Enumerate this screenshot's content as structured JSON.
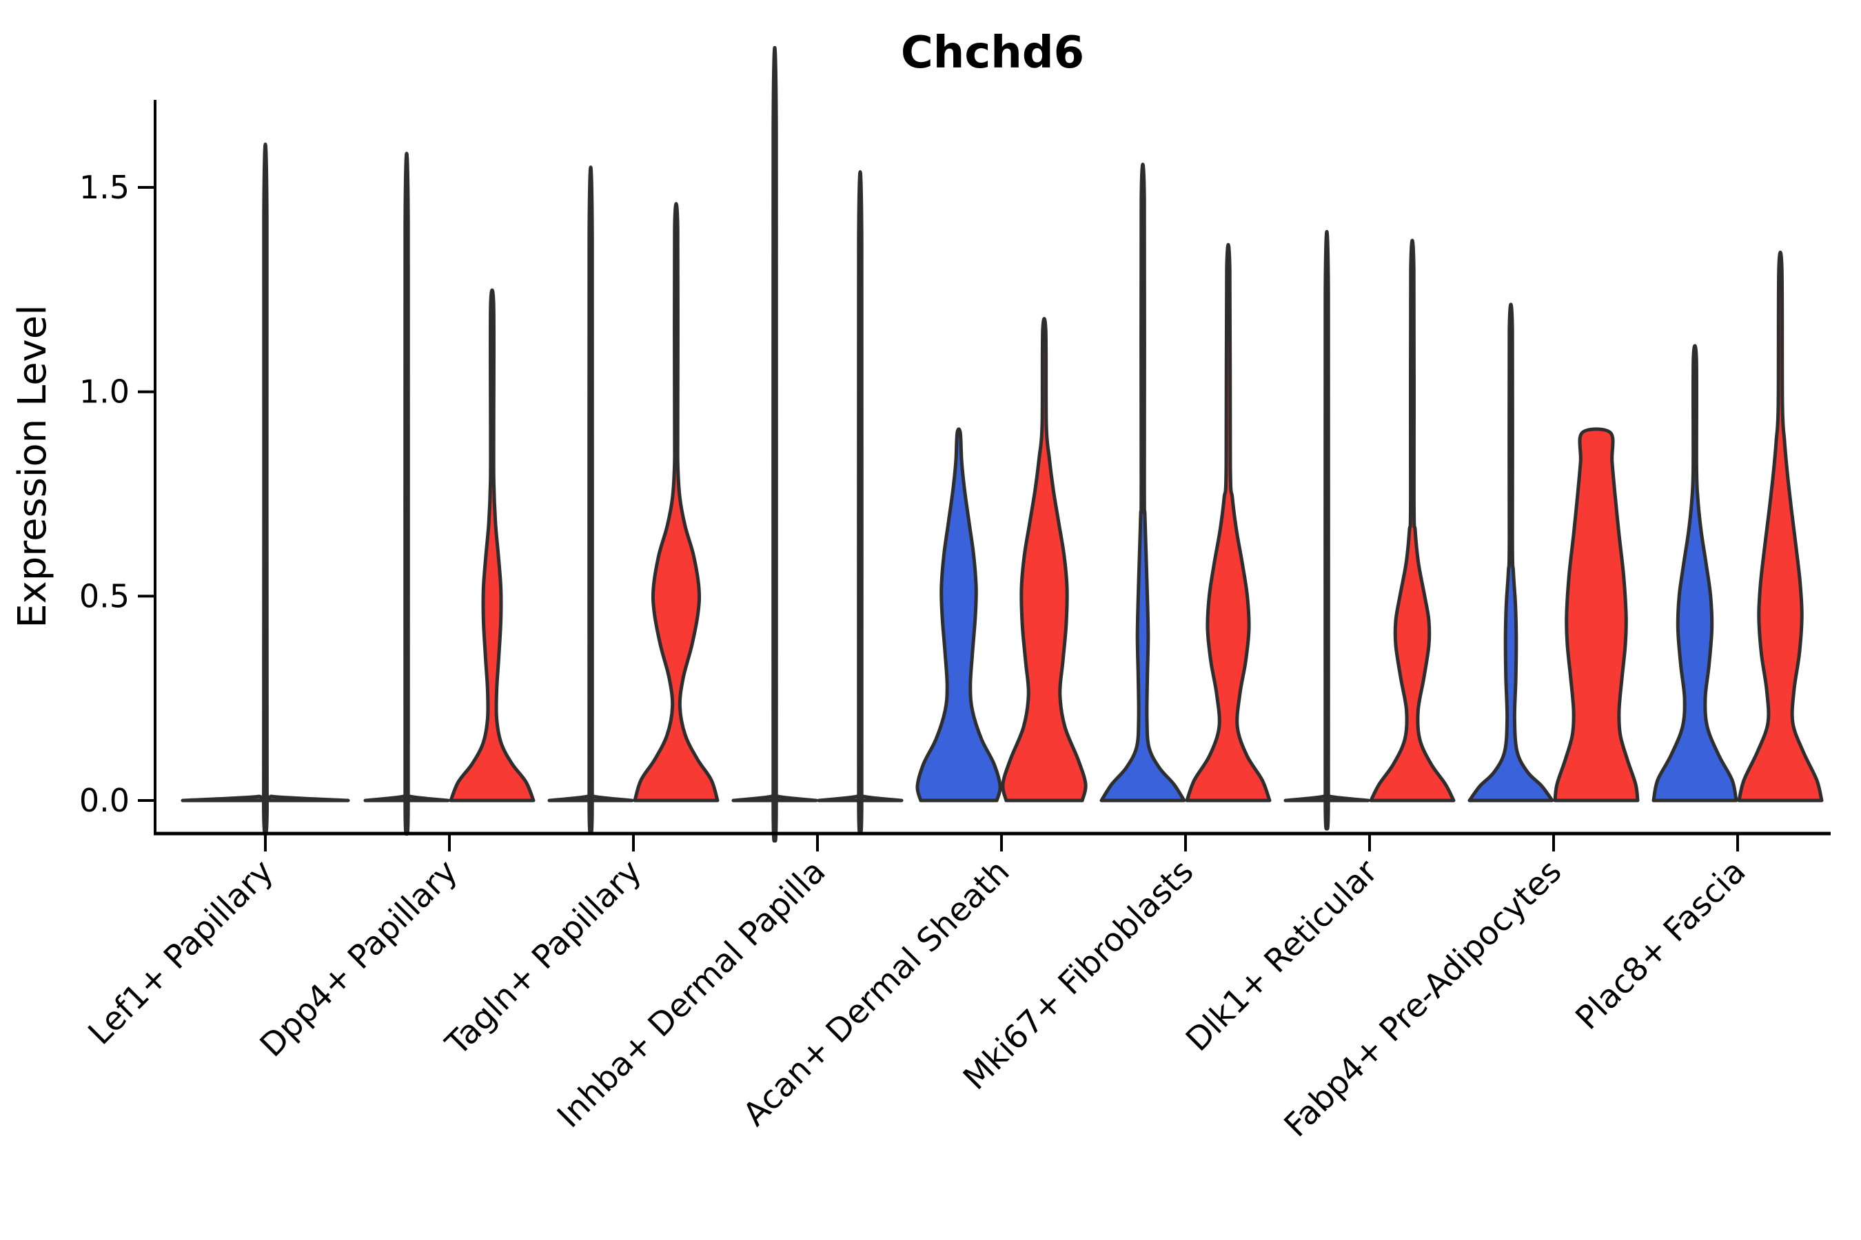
{
  "title": "Chchd6",
  "ylabel": "Expression Level",
  "colors": {
    "blue": "#3a63db",
    "red": "#f83a35",
    "outline": "#2e2e2e",
    "axis": "#000000"
  },
  "chart_data": {
    "type": "violin",
    "title": "Chchd6",
    "xlabel": "",
    "ylabel": "Expression Level",
    "ylim": [
      -0.08,
      1.72
    ],
    "yticks": [
      "0.0",
      "0.5",
      "1.0",
      "1.5"
    ],
    "ytick_values": [
      0.0,
      0.5,
      1.0,
      1.5
    ],
    "grid": false,
    "legend": "none",
    "series": [
      {
        "id": "blue",
        "color_key": "blue"
      },
      {
        "id": "red",
        "color_key": "red"
      }
    ],
    "categories": [
      "Lef1+ Papillary",
      "Dpp4+ Papillary",
      "Tagln+ Papillary",
      "Inhba+ Dermal Papilla",
      "Acan+ Dermal Sheath",
      "Mki67+ Fibroblasts",
      "Dlk1+ Reticular",
      "Fabp4+ Pre-Adipocytes",
      "Plac8+ Fascia"
    ],
    "groups": [
      {
        "label": "Lef1+ Papillary",
        "violins": [
          {
            "series": "blue",
            "offset": 0,
            "wide": true,
            "spike_top": 1.43,
            "profile": [
              [
                0,
                1.0
              ],
              [
                0.01,
                0.08
              ],
              [
                0.025,
                0.02
              ]
            ]
          }
        ]
      },
      {
        "label": "Dpp4+ Papillary",
        "violins": [
          {
            "series": "blue",
            "offset": -1,
            "spike_top": 1.41,
            "profile": [
              [
                0,
                1.0
              ],
              [
                0.01,
                0.08
              ],
              [
                0.025,
                0.02
              ]
            ]
          },
          {
            "series": "red",
            "offset": 1,
            "spike_top": 1.21,
            "profile": [
              [
                0,
                1.0
              ],
              [
                0.045,
                0.82
              ],
              [
                0.09,
                0.48
              ],
              [
                0.14,
                0.22
              ],
              [
                0.2,
                0.11
              ],
              [
                0.27,
                0.11
              ],
              [
                0.35,
                0.16
              ],
              [
                0.44,
                0.21
              ],
              [
                0.52,
                0.21
              ],
              [
                0.6,
                0.15
              ],
              [
                0.68,
                0.08
              ],
              [
                0.78,
                0.04
              ],
              [
                0.9,
                0.025
              ]
            ]
          }
        ]
      },
      {
        "label": "Tagln+ Papillary",
        "violins": [
          {
            "series": "blue",
            "offset": -1,
            "spike_top": 1.38,
            "profile": [
              [
                0,
                1.0
              ],
              [
                0.01,
                0.08
              ],
              [
                0.025,
                0.02
              ]
            ]
          },
          {
            "series": "red",
            "offset": 1,
            "spike_top": 1.4,
            "profile": [
              [
                0,
                1.0
              ],
              [
                0.05,
                0.85
              ],
              [
                0.1,
                0.52
              ],
              [
                0.16,
                0.22
              ],
              [
                0.23,
                0.09
              ],
              [
                0.3,
                0.17
              ],
              [
                0.38,
                0.38
              ],
              [
                0.46,
                0.53
              ],
              [
                0.52,
                0.55
              ],
              [
                0.6,
                0.42
              ],
              [
                0.67,
                0.22
              ],
              [
                0.74,
                0.09
              ],
              [
                0.82,
                0.04
              ],
              [
                0.92,
                0.025
              ]
            ]
          }
        ]
      },
      {
        "label": "Inhba+ Dermal Papilla",
        "violins": [
          {
            "series": "blue",
            "offset": -1,
            "spike_top": 1.64,
            "profile": [
              [
                0,
                1.0
              ],
              [
                0.01,
                0.08
              ],
              [
                0.025,
                0.02
              ]
            ]
          },
          {
            "series": "red",
            "offset": 1,
            "spike_top": 1.37,
            "profile": [
              [
                0,
                1.0
              ],
              [
                0.01,
                0.08
              ],
              [
                0.025,
                0.02
              ]
            ]
          }
        ]
      },
      {
        "label": "Acan+ Dermal Sheath",
        "violins": [
          {
            "series": "blue",
            "offset": -1,
            "spike_top": null,
            "profile": [
              [
                0,
                0.92
              ],
              [
                0.035,
                1.0
              ],
              [
                0.09,
                0.85
              ],
              [
                0.15,
                0.55
              ],
              [
                0.22,
                0.33
              ],
              [
                0.28,
                0.28
              ],
              [
                0.36,
                0.33
              ],
              [
                0.45,
                0.4
              ],
              [
                0.52,
                0.42
              ],
              [
                0.6,
                0.36
              ],
              [
                0.68,
                0.25
              ],
              [
                0.76,
                0.14
              ],
              [
                0.83,
                0.07
              ],
              [
                0.9,
                0.03
              ]
            ]
          },
          {
            "series": "red",
            "offset": 1,
            "spike_top": 1.15,
            "profile": [
              [
                0,
                0.92
              ],
              [
                0.04,
                1.0
              ],
              [
                0.1,
                0.82
              ],
              [
                0.18,
                0.5
              ],
              [
                0.26,
                0.38
              ],
              [
                0.34,
                0.45
              ],
              [
                0.43,
                0.53
              ],
              [
                0.52,
                0.55
              ],
              [
                0.6,
                0.48
              ],
              [
                0.68,
                0.35
              ],
              [
                0.76,
                0.22
              ],
              [
                0.84,
                0.12
              ],
              [
                0.92,
                0.05
              ]
            ]
          }
        ]
      },
      {
        "label": "Mki67+ Fibroblasts",
        "violins": [
          {
            "series": "blue",
            "offset": -1,
            "spike_top": 1.47,
            "profile": [
              [
                0,
                1.0
              ],
              [
                0.04,
                0.75
              ],
              [
                0.08,
                0.4
              ],
              [
                0.13,
                0.15
              ],
              [
                0.2,
                0.1
              ],
              [
                0.3,
                0.11
              ],
              [
                0.4,
                0.13
              ],
              [
                0.5,
                0.11
              ],
              [
                0.6,
                0.08
              ],
              [
                0.7,
                0.05
              ],
              [
                0.78,
                0.03
              ]
            ]
          },
          {
            "series": "red",
            "offset": 1,
            "spike_top": 1.3,
            "profile": [
              [
                0,
                1.0
              ],
              [
                0.05,
                0.82
              ],
              [
                0.11,
                0.45
              ],
              [
                0.18,
                0.22
              ],
              [
                0.26,
                0.28
              ],
              [
                0.34,
                0.42
              ],
              [
                0.42,
                0.5
              ],
              [
                0.5,
                0.46
              ],
              [
                0.58,
                0.34
              ],
              [
                0.66,
                0.2
              ],
              [
                0.74,
                0.1
              ],
              [
                0.82,
                0.05
              ]
            ]
          }
        ]
      },
      {
        "label": "Dlk1+ Reticular",
        "violins": [
          {
            "series": "blue",
            "offset": -1,
            "spike_top": 1.24,
            "profile": [
              [
                0,
                1.0
              ],
              [
                0.01,
                0.08
              ],
              [
                0.025,
                0.02
              ]
            ]
          },
          {
            "series": "red",
            "offset": 1,
            "spike_top": 1.3,
            "profile": [
              [
                0,
                1.0
              ],
              [
                0.04,
                0.8
              ],
              [
                0.09,
                0.45
              ],
              [
                0.15,
                0.18
              ],
              [
                0.22,
                0.14
              ],
              [
                0.3,
                0.28
              ],
              [
                0.38,
                0.4
              ],
              [
                0.44,
                0.4
              ],
              [
                0.5,
                0.3
              ],
              [
                0.58,
                0.15
              ],
              [
                0.66,
                0.07
              ],
              [
                0.74,
                0.04
              ]
            ]
          }
        ]
      },
      {
        "label": "Fabp4+ Pre-Adipocytes",
        "violins": [
          {
            "series": "blue",
            "offset": -1,
            "spike_top": 1.15,
            "profile": [
              [
                0,
                1.0
              ],
              [
                0.035,
                0.75
              ],
              [
                0.07,
                0.4
              ],
              [
                0.12,
                0.15
              ],
              [
                0.2,
                0.09
              ],
              [
                0.3,
                0.12
              ],
              [
                0.4,
                0.13
              ],
              [
                0.48,
                0.11
              ],
              [
                0.56,
                0.06
              ],
              [
                0.64,
                0.03
              ]
            ]
          },
          {
            "series": "red",
            "offset": 1,
            "spike_top": null,
            "flat_top": true,
            "profile": [
              [
                0,
                1.0
              ],
              [
                0.04,
                0.95
              ],
              [
                0.1,
                0.75
              ],
              [
                0.16,
                0.58
              ],
              [
                0.22,
                0.55
              ],
              [
                0.3,
                0.62
              ],
              [
                0.38,
                0.7
              ],
              [
                0.45,
                0.72
              ],
              [
                0.55,
                0.66
              ],
              [
                0.65,
                0.55
              ],
              [
                0.75,
                0.45
              ],
              [
                0.83,
                0.38
              ],
              [
                0.9,
                0.34
              ]
            ]
          }
        ]
      },
      {
        "label": "Plac8+ Fascia",
        "violins": [
          {
            "series": "blue",
            "offset": -1,
            "spike_top": 1.08,
            "profile": [
              [
                0,
                1.0
              ],
              [
                0.05,
                0.9
              ],
              [
                0.11,
                0.58
              ],
              [
                0.18,
                0.3
              ],
              [
                0.25,
                0.25
              ],
              [
                0.33,
                0.34
              ],
              [
                0.42,
                0.41
              ],
              [
                0.5,
                0.38
              ],
              [
                0.58,
                0.27
              ],
              [
                0.66,
                0.15
              ],
              [
                0.74,
                0.07
              ],
              [
                0.82,
                0.04
              ]
            ]
          },
          {
            "series": "red",
            "offset": 1,
            "spike_top": 1.3,
            "profile": [
              [
                0,
                1.0
              ],
              [
                0.05,
                0.88
              ],
              [
                0.12,
                0.55
              ],
              [
                0.19,
                0.3
              ],
              [
                0.27,
                0.33
              ],
              [
                0.36,
                0.46
              ],
              [
                0.45,
                0.52
              ],
              [
                0.53,
                0.48
              ],
              [
                0.62,
                0.38
              ],
              [
                0.71,
                0.27
              ],
              [
                0.8,
                0.17
              ],
              [
                0.88,
                0.1
              ],
              [
                0.97,
                0.05
              ]
            ]
          }
        ]
      }
    ]
  }
}
